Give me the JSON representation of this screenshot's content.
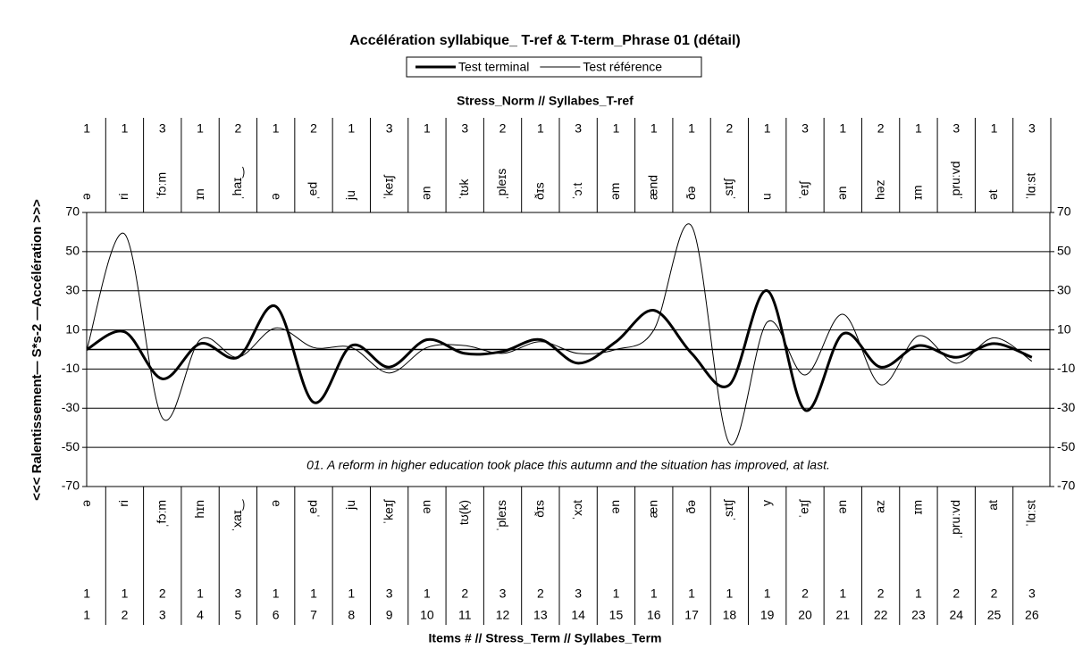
{
  "chart_data": {
    "type": "line",
    "title": "Accélération syllabique_ T-ref & T-term_Phrase 01 (détail)",
    "top_axis_label": "Stress_Norm // Syllabes_T-ref",
    "x_label": "Items # // Stress_Term // Syllabes_Term",
    "y_label": "<<< Ralentissement— S*s-2 —Accélération  >>>",
    "annotation": "01. A reform in higher education took place this autumn and the situation has improved, at last.",
    "categories": [
      1,
      2,
      3,
      4,
      5,
      6,
      7,
      8,
      9,
      10,
      11,
      12,
      13,
      14,
      15,
      16,
      17,
      18,
      19,
      20,
      21,
      22,
      23,
      24,
      25,
      26
    ],
    "stress_ref": [
      1,
      1,
      3,
      1,
      2,
      1,
      2,
      1,
      3,
      1,
      3,
      2,
      1,
      3,
      1,
      1,
      1,
      2,
      1,
      3,
      1,
      2,
      1,
      3,
      1,
      3
    ],
    "syllables_ref": [
      "ə",
      "ri",
      "ˈfɔːm",
      "ɪn",
      "ˌhaɪ‿",
      "ə",
      "ˌed",
      "ju",
      "ˈkeɪʃ",
      "ən",
      "ˈtʊk",
      "ˌpleɪs",
      "ðɪs",
      "ˈɔːt",
      "əm",
      "ænd",
      "ðə",
      "ˌsɪtʃ",
      "u",
      "ˈeɪʃ",
      "ən",
      "həz",
      "ɪm",
      "ˌpruːvd",
      "ət",
      "ˈlɑːst"
    ],
    "stress_term": [
      1,
      1,
      2,
      1,
      3,
      1,
      1,
      1,
      3,
      1,
      2,
      3,
      2,
      3,
      1,
      1,
      1,
      1,
      1,
      2,
      1,
      2,
      1,
      2,
      2,
      3
    ],
    "syllables_term": [
      "ə",
      "ri",
      "ˌfɔːm",
      "hɪn",
      "ˈxaɪ‿",
      "ə",
      "ˌed",
      "ju",
      "ˈkeɪʃ",
      "ən",
      "tʊ(k)",
      "ˈpleɪs",
      "ðɪs",
      "ˈxɔt",
      "ən",
      "æn",
      "ðə",
      "ˌsɪtʃ",
      "y",
      "ˈeɪʃ",
      "ən",
      "az",
      "ɪm",
      "ˌpruːvd",
      "at",
      "ˈlɑːst"
    ],
    "series": [
      {
        "name": "Test terminal",
        "color": "#000000",
        "line_width": 3,
        "values": [
          0,
          9,
          -15,
          3,
          -4,
          22,
          -27,
          2,
          -9,
          5,
          -2,
          -1,
          5,
          -7,
          4,
          20,
          -2,
          -18,
          30,
          -31,
          8,
          -9,
          2,
          -4,
          3,
          -4
        ]
      },
      {
        "name": "Test référence",
        "color": "#000000",
        "line_width": 1,
        "values": [
          0,
          59,
          -35,
          5,
          -4,
          11,
          1,
          1,
          -12,
          1,
          2,
          -2,
          4,
          -2,
          0,
          10,
          63,
          -48,
          14,
          -13,
          18,
          -18,
          7,
          -7,
          6,
          -6
        ]
      }
    ],
    "ylim": [
      -70,
      70
    ],
    "yticks": [
      -70,
      -50,
      -30,
      -10,
      10,
      30,
      50,
      70
    ],
    "grid": true
  }
}
